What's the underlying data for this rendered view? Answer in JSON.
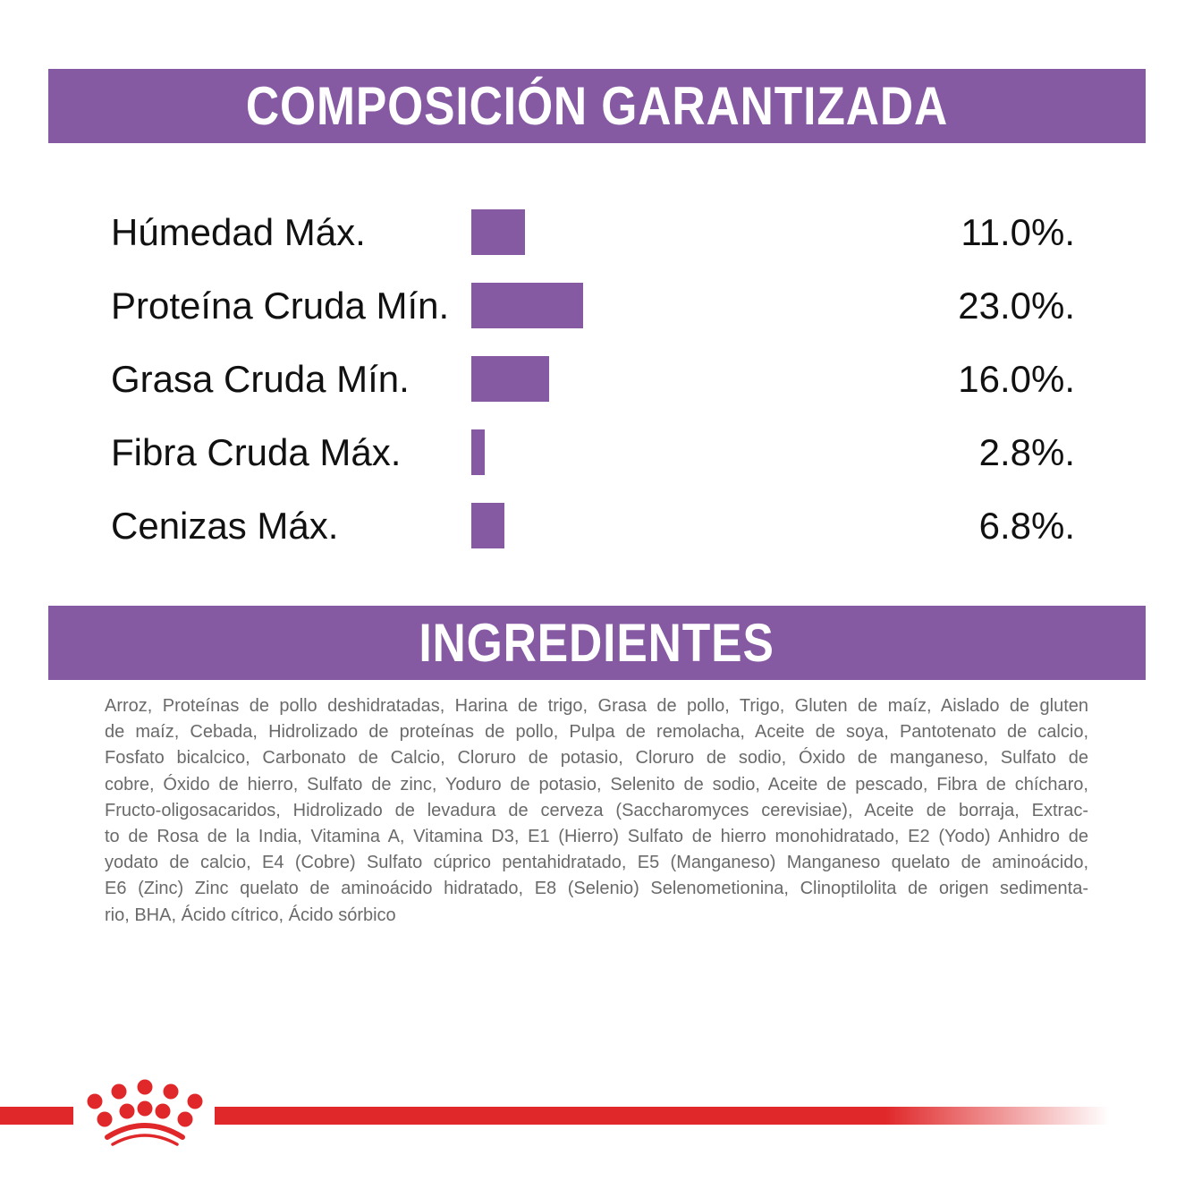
{
  "headers": {
    "composition": "COMPOSICIÓN GARANTIZADA",
    "ingredients": "INGREDIENTES"
  },
  "colors": {
    "accent": "#8659a3",
    "brand_red": "#e0282a",
    "text": "#111111",
    "ingredients_text": "#6a6a6a"
  },
  "chart_data": {
    "type": "bar",
    "orientation": "horizontal",
    "categories": [
      "Húmedad Máx.",
      "Proteína Cruda Mín.",
      "Grasa Cruda Mín.",
      "Fibra Cruda Máx.",
      "Cenizas Máx."
    ],
    "values": [
      11.0,
      23.0,
      16.0,
      2.8,
      6.8
    ],
    "value_labels": [
      "11.0%.",
      "23.0%.",
      "16.0%.",
      "2.8%.",
      "6.8%."
    ],
    "title": "COMPOSICIÓN GARANTIZADA",
    "grid": false
  },
  "ingredients_lines": [
    "Arroz, Proteínas de pollo deshidratadas, Harina de trigo, Grasa de pollo, Trigo, Gluten de maíz, Aislado de gluten",
    "de maíz, Cebada, Hidrolizado de proteínas de pollo, Pulpa de remolacha, Aceite de soya, Pantotenato de calcio,",
    "Fosfato bicalcico, Carbonato de Calcio, Cloruro de potasio, Cloruro de sodio, Óxido de manganeso, Sulfato de",
    "cobre, Óxido de hierro, Sulfato de zinc, Yoduro de potasio, Selenito de sodio, Aceite de pescado, Fibra de chícharo,",
    "Fructo-oligosacaridos, Hidrolizado de levadura de cerveza (Saccharomyces cerevisiae), Aceite de borraja, Extrac-",
    "to de Rosa de la India, Vitamina A, Vitamina D3, E1 (Hierro) Sulfato de hierro monohidratado, E2 (Yodo) Anhidro de",
    "yodato de calcio, E4 (Cobre) Sulfato cúprico pentahidratado, E5 (Manganeso) Manganeso quelato de aminoácido,",
    "E6 (Zinc) Zinc quelato de aminoácido hidratado, E8 (Selenio) Selenometionina, Clinoptilolita de origen sedimenta-",
    "rio, BHA, Ácido cítrico, Ácido sórbico"
  ],
  "logo": {
    "icon": "royal-canin-crown-icon"
  }
}
